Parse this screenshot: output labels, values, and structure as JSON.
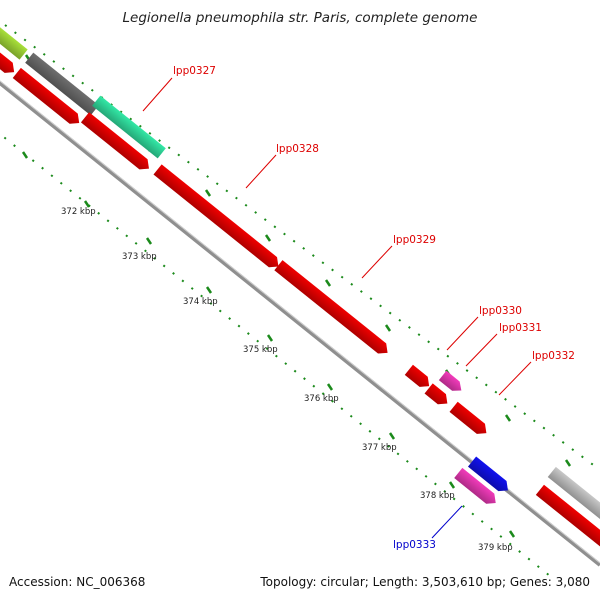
{
  "title": "Legionella pneumophila str. Paris, complete genome",
  "footer": {
    "accession": "Accession: NC_006368",
    "summary": "Topology: circular; Length: 3,503,610 bp; Genes: 3,080"
  },
  "colors": {
    "backbone": "#8f8f8f",
    "tick": "#1b8a1b",
    "gene_red": "#f00000",
    "gene_teal": "#33e8a6",
    "gene_grey": "#6e6e6e",
    "gene_lightgrey": "#c8c8c8",
    "gene_lime": "#a8e03a",
    "gene_magenta": "#f23bbb",
    "gene_blue": "#1111ee",
    "label_red": "#dd0000",
    "label_blue": "#0000cc"
  },
  "scale": {
    "labels": [
      "372 kbp",
      "373 kbp",
      "374 kbp",
      "375 kbp",
      "376 kbp",
      "377 kbp",
      "378 kbp",
      "379 kbp"
    ]
  },
  "genes": [
    {
      "name": "lpp0327",
      "color": "gene_teal",
      "labeled": true,
      "label_color": "label_red"
    },
    {
      "name": "lpp0328",
      "color": "gene_red",
      "labeled": true,
      "label_color": "label_red"
    },
    {
      "name": "lpp0329",
      "color": "gene_red",
      "labeled": true,
      "label_color": "label_red"
    },
    {
      "name": "lpp0330",
      "color": "gene_magenta",
      "labeled": true,
      "label_color": "label_red"
    },
    {
      "name": "lpp0331",
      "color": "gene_red",
      "labeled": true,
      "label_color": "label_red"
    },
    {
      "name": "lpp0332",
      "color": "gene_red",
      "labeled": true,
      "label_color": "label_red"
    },
    {
      "name": "lpp0333",
      "color": "gene_magenta",
      "labeled": true,
      "label_color": "label_blue"
    }
  ]
}
